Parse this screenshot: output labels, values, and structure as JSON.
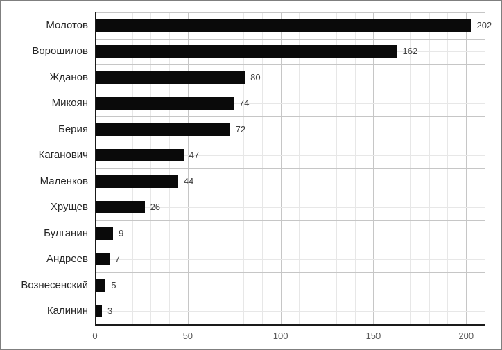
{
  "chart_data": {
    "type": "bar",
    "orientation": "horizontal",
    "title": "",
    "xlabel": "",
    "ylabel": "",
    "categories": [
      "Молотов",
      "Ворошилов",
      "Жданов",
      "Микоян",
      "Берия",
      "Каганович",
      "Маленков",
      "Хрущев",
      "Булганин",
      "Андреев",
      "Вознесенский",
      "Калинин"
    ],
    "values": [
      202,
      162,
      80,
      74,
      72,
      47,
      44,
      26,
      9,
      7,
      5,
      3
    ],
    "data_labels": [
      "202",
      "162",
      "80",
      "74",
      "72",
      "47",
      "44",
      "26",
      "9",
      "7",
      "5",
      "3"
    ],
    "xlim": [
      0,
      210
    ],
    "x_ticks": [
      0,
      50,
      100,
      150,
      200
    ],
    "x_tick_labels": [
      "0",
      "50",
      "100",
      "150",
      "200"
    ],
    "x_minor_step": 10,
    "grid": "major+minor, vertical and horizontal",
    "legend": "none",
    "colors": {
      "bar": "#0a0a0a",
      "category_label": "#262626",
      "value_label": "#404040",
      "tick_label": "#595959",
      "axis_line": "#1a1a1a",
      "grid_major": "#c6c6c6",
      "grid_minor": "#e7e7e7",
      "background": "#ffffff",
      "frame_border": "#7f7f7f"
    }
  }
}
